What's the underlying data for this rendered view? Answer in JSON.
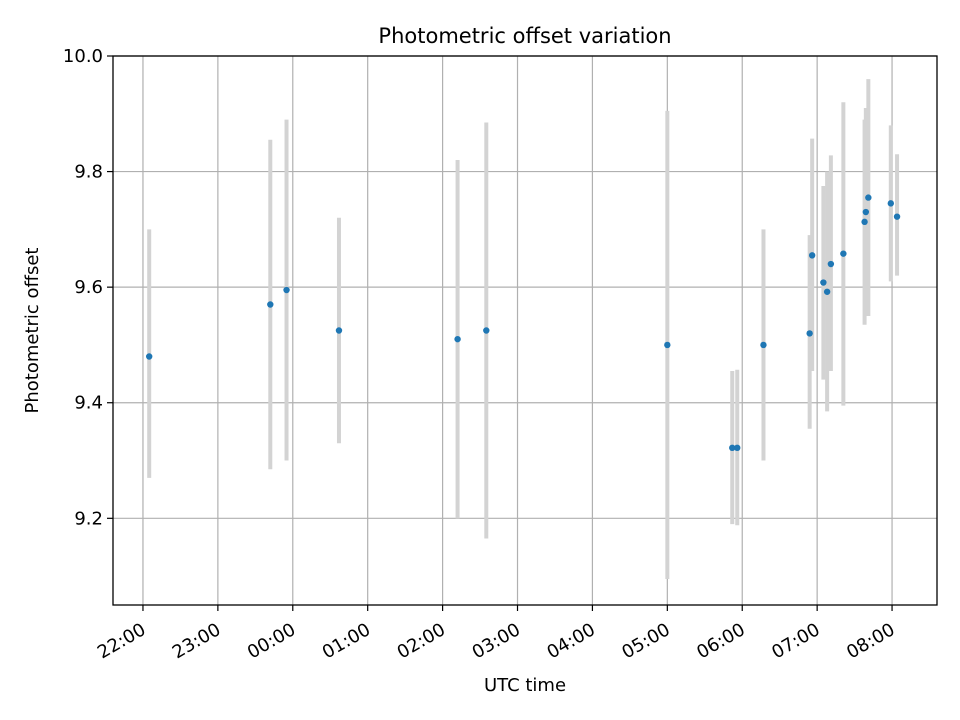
{
  "chart_data": {
    "type": "scatter",
    "title": "Photometric offset variation",
    "xlabel": "UTC time",
    "ylabel": "Photometric offset",
    "grid": true,
    "ylim": [
      9.05,
      10.0
    ],
    "xlim": [
      "21:36",
      "08:36"
    ],
    "x_tick_labels": [
      "22:00",
      "23:00",
      "00:00",
      "01:00",
      "02:00",
      "03:00",
      "04:00",
      "05:00",
      "06:00",
      "07:00",
      "08:00"
    ],
    "y_tick_labels": [
      "9.2",
      "9.4",
      "9.6",
      "9.8",
      "10.0"
    ],
    "y_ticks": [
      9.2,
      9.4,
      9.6,
      9.8,
      10.0
    ],
    "colors": {
      "point": "#1f77b4",
      "errorbar": "#d3d3d3",
      "grid": "#b0b0b0"
    },
    "series": [
      {
        "points": [
          {
            "x": "22:05",
            "y": 9.48,
            "err_low": 9.27,
            "err_high": 9.7
          },
          {
            "x": "23:42",
            "y": 9.57,
            "err_low": 9.285,
            "err_high": 9.855
          },
          {
            "x": "23:55",
            "y": 9.595,
            "err_low": 9.3,
            "err_high": 9.89
          },
          {
            "x": "00:37",
            "y": 9.525,
            "err_low": 9.33,
            "err_high": 9.72
          },
          {
            "x": "02:12",
            "y": 9.51,
            "err_low": 9.2,
            "err_high": 9.82
          },
          {
            "x": "02:35",
            "y": 9.525,
            "err_low": 9.165,
            "err_high": 9.885
          },
          {
            "x": "05:00",
            "y": 9.5,
            "err_low": 9.095,
            "err_high": 9.905
          },
          {
            "x": "05:52",
            "y": 9.322,
            "err_low": 9.19,
            "err_high": 9.455
          },
          {
            "x": "05:56",
            "y": 9.322,
            "err_low": 9.188,
            "err_high": 9.457
          },
          {
            "x": "06:17",
            "y": 9.5,
            "err_low": 9.3,
            "err_high": 9.7
          },
          {
            "x": "06:54",
            "y": 9.52,
            "err_low": 9.355,
            "err_high": 9.69
          },
          {
            "x": "06:56",
            "y": 9.655,
            "err_low": 9.455,
            "err_high": 9.857
          },
          {
            "x": "07:05",
            "y": 9.608,
            "err_low": 9.44,
            "err_high": 9.775
          },
          {
            "x": "07:08",
            "y": 9.592,
            "err_low": 9.385,
            "err_high": 9.8
          },
          {
            "x": "07:11",
            "y": 9.64,
            "err_low": 9.455,
            "err_high": 9.828
          },
          {
            "x": "07:21",
            "y": 9.658,
            "err_low": 9.395,
            "err_high": 9.92
          },
          {
            "x": "07:38",
            "y": 9.713,
            "err_low": 9.535,
            "err_high": 9.89
          },
          {
            "x": "07:39",
            "y": 9.73,
            "err_low": 9.55,
            "err_high": 9.91
          },
          {
            "x": "07:41",
            "y": 9.755,
            "err_low": 9.55,
            "err_high": 9.96
          },
          {
            "x": "07:59",
            "y": 9.745,
            "err_low": 9.61,
            "err_high": 9.88
          },
          {
            "x": "08:04",
            "y": 9.722,
            "err_low": 9.62,
            "err_high": 9.83
          }
        ]
      }
    ]
  }
}
